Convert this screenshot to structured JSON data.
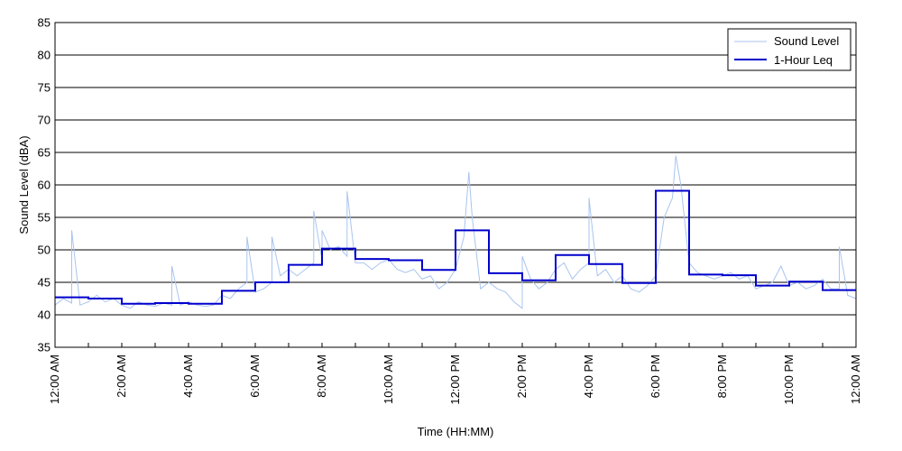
{
  "chart_data": {
    "type": "line",
    "title": "",
    "xlabel": "Time (HH:MM)",
    "ylabel": "Sound Level (dBA)",
    "ylim": [
      35,
      85
    ],
    "xlim_hours": [
      0,
      24
    ],
    "y_ticks": [
      35,
      40,
      45,
      50,
      55,
      60,
      65,
      70,
      75,
      80,
      85
    ],
    "x_tick_labels": [
      "12:00 AM",
      "2:00 AM",
      "4:00 AM",
      "6:00 AM",
      "8:00 AM",
      "10:00 AM",
      "12:00 PM",
      "2:00 PM",
      "4:00 PM",
      "6:00 PM",
      "8:00 PM",
      "10:00 PM",
      "12:00 AM"
    ],
    "x_tick_hours": [
      0,
      2,
      4,
      6,
      8,
      10,
      12,
      14,
      16,
      18,
      20,
      22,
      24
    ],
    "grid": "horizontal",
    "legend_position": "top-right",
    "legend": [
      "Sound Level",
      "1-Hour Leq"
    ],
    "colors": {
      "sound_level": "#a9c4ef",
      "leq": "#0000cc",
      "grid": "#000000"
    },
    "series": [
      {
        "name": "Sound Level",
        "style": "thin-line",
        "x_hours": [
          0,
          0.25,
          0.5,
          0.5,
          0.75,
          1,
          1.25,
          1.5,
          1.75,
          2,
          2.25,
          2.5,
          2.75,
          3,
          3.25,
          3.5,
          3.5,
          3.75,
          4,
          4.25,
          4.5,
          4.75,
          5,
          5.25,
          5.5,
          5.75,
          5.75,
          6,
          6.25,
          6.5,
          6.5,
          6.75,
          7,
          7.25,
          7.5,
          7.75,
          7.75,
          8,
          8,
          8.25,
          8.5,
          8.75,
          8.75,
          9,
          9.25,
          9.5,
          9.75,
          10,
          10.25,
          10.5,
          10.75,
          11,
          11.25,
          11.5,
          11.75,
          12,
          12.25,
          12.4,
          12.5,
          12.75,
          13,
          13.25,
          13.5,
          13.75,
          14,
          14,
          14.25,
          14.5,
          14.75,
          15,
          15.25,
          15.5,
          15.75,
          16,
          16,
          16.25,
          16.5,
          16.75,
          17,
          17.25,
          17.5,
          17.75,
          18,
          18.25,
          18.5,
          18.6,
          18.75,
          19,
          19.25,
          19.5,
          19.75,
          20,
          20.25,
          20.5,
          20.75,
          21,
          21.25,
          21.5,
          21.75,
          22,
          22.25,
          22.5,
          22.75,
          23,
          23.25,
          23.5,
          23.5,
          23.75,
          24
        ],
        "values": [
          41.5,
          42.5,
          41.8,
          53.0,
          41.5,
          42.0,
          43.0,
          42.0,
          42.5,
          41.5,
          41.0,
          42.0,
          41.5,
          41.3,
          41.8,
          41.5,
          47.5,
          41.5,
          42.0,
          41.5,
          41.3,
          41.5,
          43.0,
          42.5,
          44.0,
          45.0,
          52.0,
          43.5,
          44.0,
          45.0,
          52.0,
          46.0,
          47.0,
          46.0,
          47.0,
          48.0,
          56.0,
          48.5,
          53.0,
          50.0,
          50.5,
          49.0,
          59.0,
          48.0,
          48.0,
          47.0,
          48.0,
          48.5,
          47.0,
          46.5,
          47.0,
          45.5,
          46.0,
          44.0,
          45.0,
          47.0,
          52.0,
          62.0,
          55.0,
          44.0,
          45.0,
          44.0,
          43.5,
          42.0,
          41.0,
          49.0,
          45.5,
          44.0,
          45.0,
          47.0,
          48.0,
          45.5,
          47.0,
          48.0,
          58.0,
          46.0,
          47.0,
          45.0,
          46.0,
          44.0,
          43.5,
          44.5,
          46.0,
          55.0,
          58.0,
          64.5,
          60.0,
          48.0,
          46.5,
          46.0,
          45.5,
          46.0,
          46.5,
          45.5,
          46.0,
          44.0,
          44.5,
          45.0,
          47.5,
          44.5,
          45.0,
          44.0,
          44.5,
          45.5,
          44.0,
          44.0,
          50.5,
          43.0,
          42.5
        ]
      },
      {
        "name": "1-Hour Leq",
        "style": "step",
        "hours": [
          0,
          1,
          2,
          3,
          4,
          5,
          6,
          7,
          8,
          9,
          10,
          11,
          12,
          13,
          14,
          15,
          16,
          17,
          18,
          19,
          20,
          21,
          22,
          23
        ],
        "values": [
          42.7,
          42.5,
          41.7,
          41.8,
          41.7,
          43.7,
          45.0,
          47.7,
          50.2,
          48.6,
          48.4,
          46.9,
          53.0,
          46.4,
          45.3,
          49.2,
          47.8,
          44.9,
          59.1,
          46.2,
          46.1,
          44.5,
          45.1,
          43.8
        ]
      }
    ]
  }
}
